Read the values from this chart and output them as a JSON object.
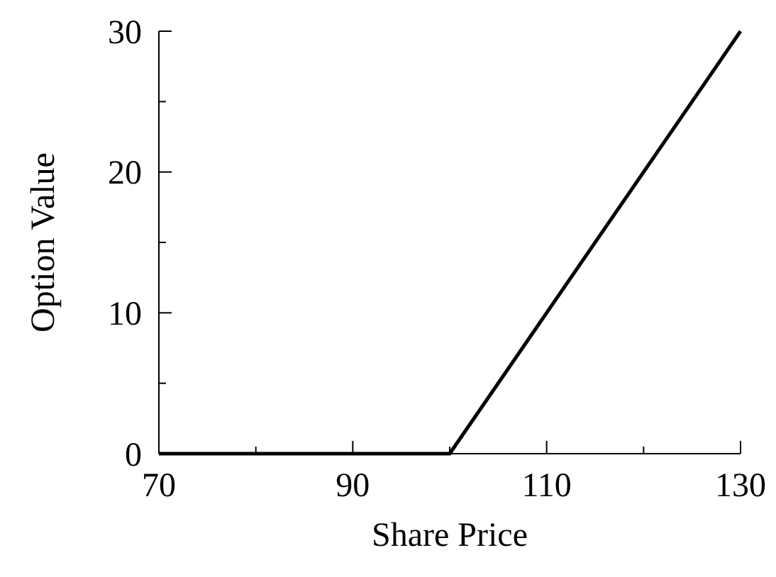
{
  "chart_data": {
    "type": "line",
    "xlabel": "Share Price",
    "ylabel": "Option Value",
    "x": [
      70,
      100,
      130
    ],
    "series": [
      {
        "color": "#000000",
        "values": [
          0,
          0,
          30
        ]
      }
    ],
    "xlim": [
      70,
      130
    ],
    "ylim": [
      0,
      30
    ],
    "xticks": [
      70,
      {
        "value": 80,
        "label": null
      },
      90,
      {
        "value": 100,
        "label": null
      },
      110,
      {
        "value": 120,
        "label": null
      },
      130
    ],
    "yticks": [
      0,
      {
        "value": 5,
        "label": null
      },
      10,
      {
        "value": 15,
        "label": null
      },
      20,
      {
        "value": 25,
        "label": null
      },
      30
    ],
    "marker": "none",
    "line_style": "solid"
  }
}
